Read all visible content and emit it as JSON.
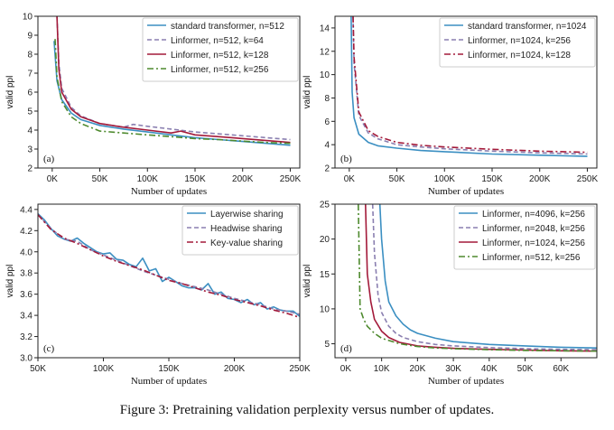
{
  "caption": "Figure 3: Pretraining validation perplexity versus number of updates.",
  "chart_data": [
    {
      "panel_label": "(a)",
      "type": "line",
      "xlabel": "Number of updates",
      "ylabel": "valid ppl",
      "xlim": [
        -15000,
        260000
      ],
      "ylim": [
        2,
        10
      ],
      "xticks": [
        0,
        50000,
        100000,
        150000,
        200000,
        250000
      ],
      "xticklabels": [
        "0K",
        "50K",
        "100K",
        "150K",
        "200K",
        "250K"
      ],
      "yticks": [
        2,
        3,
        4,
        5,
        6,
        7,
        8,
        9,
        10
      ],
      "yticklabels": [
        "2",
        "3",
        "4",
        "5",
        "6",
        "7",
        "8",
        "9",
        "10"
      ],
      "legend_position": "top-right",
      "series": [
        {
          "name": "standard transformer, n=512",
          "color": "#3b8fc2",
          "dash": "solid",
          "x": [
            2000,
            5000,
            10000,
            20000,
            30000,
            50000,
            75000,
            100000,
            125000,
            150000,
            175000,
            200000,
            225000,
            250000
          ],
          "y": [
            8.7,
            6.6,
            5.6,
            4.9,
            4.55,
            4.25,
            4.05,
            3.9,
            3.75,
            3.6,
            3.5,
            3.4,
            3.3,
            3.2
          ]
        },
        {
          "name": "Linformer, n=512, k=64",
          "color": "#8a7fb0",
          "dash": "5,3",
          "x": [
            5000,
            7000,
            10000,
            20000,
            30000,
            50000,
            75000,
            85000,
            100000,
            125000,
            150000,
            175000,
            200000,
            225000,
            250000
          ],
          "y": [
            10,
            7.5,
            6.2,
            5.2,
            4.75,
            4.35,
            4.15,
            4.3,
            4.2,
            4.05,
            3.9,
            3.8,
            3.7,
            3.6,
            3.5
          ]
        },
        {
          "name": "Linformer, n=512, k=128",
          "color": "#a31a3a",
          "dash": "solid",
          "x": [
            5000,
            7000,
            10000,
            20000,
            30000,
            50000,
            75000,
            100000,
            125000,
            135000,
            150000,
            175000,
            200000,
            225000,
            250000
          ],
          "y": [
            10,
            7.2,
            6.0,
            5.1,
            4.7,
            4.35,
            4.15,
            4.0,
            3.85,
            3.95,
            3.75,
            3.65,
            3.55,
            3.45,
            3.35
          ]
        },
        {
          "name": "Linformer, n=512, k=256",
          "color": "#4e8a2e",
          "dash": "7,3,2,3",
          "x": [
            3000,
            5000,
            10000,
            20000,
            30000,
            50000,
            75000,
            100000,
            125000,
            150000,
            175000,
            200000,
            225000,
            250000
          ],
          "y": [
            8.8,
            6.8,
            5.5,
            4.7,
            4.35,
            3.95,
            3.85,
            3.75,
            3.65,
            3.55,
            3.5,
            3.42,
            3.35,
            3.3
          ]
        }
      ]
    },
    {
      "panel_label": "(b)",
      "type": "line",
      "xlabel": "Number of updates",
      "ylabel": "valid ppl",
      "xlim": [
        -15000,
        260000
      ],
      "ylim": [
        2,
        15
      ],
      "xticks": [
        0,
        50000,
        100000,
        150000,
        200000,
        250000
      ],
      "xticklabels": [
        "0K",
        "50K",
        "100K",
        "150K",
        "200K",
        "250K"
      ],
      "yticks": [
        2,
        4,
        6,
        8,
        10,
        12,
        14
      ],
      "yticklabels": [
        "2",
        "4",
        "6",
        "8",
        "10",
        "12",
        "14"
      ],
      "legend_position": "top-right",
      "series": [
        {
          "name": "standard transformer, n=1024",
          "color": "#3b8fc2",
          "dash": "solid",
          "x": [
            2000,
            3000,
            5000,
            10000,
            20000,
            30000,
            50000,
            75000,
            100000,
            150000,
            200000,
            250000
          ],
          "y": [
            15,
            8.5,
            6.3,
            4.9,
            4.2,
            3.9,
            3.7,
            3.5,
            3.4,
            3.2,
            3.1,
            3.0
          ]
        },
        {
          "name": "Linformer, n=1024, k=256",
          "color": "#8a7fb0",
          "dash": "5,3",
          "x": [
            4000,
            5000,
            10000,
            20000,
            30000,
            50000,
            75000,
            100000,
            150000,
            200000,
            250000
          ],
          "y": [
            15,
            11,
            6.5,
            5.0,
            4.5,
            4.0,
            3.8,
            3.65,
            3.45,
            3.3,
            3.2
          ]
        },
        {
          "name": "Linformer, n=1024, k=128",
          "color": "#a31a3a",
          "dash": "7,3,2,3",
          "x": [
            4000,
            5000,
            10000,
            20000,
            30000,
            50000,
            75000,
            100000,
            150000,
            200000,
            250000
          ],
          "y": [
            15,
            11.5,
            6.8,
            5.2,
            4.7,
            4.2,
            3.95,
            3.8,
            3.6,
            3.45,
            3.35
          ]
        }
      ]
    },
    {
      "panel_label": "(c)",
      "type": "line",
      "xlabel": "Number of updates",
      "ylabel": "valid ppl",
      "xlim": [
        50000,
        250000
      ],
      "ylim": [
        3.0,
        4.45
      ],
      "xticks": [
        50000,
        100000,
        150000,
        200000,
        250000
      ],
      "xticklabels": [
        "50K",
        "100K",
        "150K",
        "200K",
        "250K"
      ],
      "yticks": [
        3.0,
        3.2,
        3.4,
        3.6,
        3.8,
        4.0,
        4.2,
        4.4
      ],
      "yticklabels": [
        "3.0",
        "3.2",
        "3.4",
        "3.6",
        "3.8",
        "4.0",
        "4.2",
        "4.4"
      ],
      "legend_position": "top-right",
      "series": [
        {
          "name": "Layerwise sharing",
          "color": "#3b8fc2",
          "dash": "solid",
          "x": [
            50000,
            55000,
            60000,
            65000,
            70000,
            75000,
            80000,
            85000,
            90000,
            95000,
            100000,
            105000,
            110000,
            115000,
            120000,
            125000,
            130000,
            135000,
            140000,
            145000,
            150000,
            155000,
            160000,
            165000,
            170000,
            175000,
            180000,
            185000,
            190000,
            195000,
            200000,
            205000,
            210000,
            215000,
            220000,
            225000,
            230000,
            235000,
            240000,
            245000,
            250000
          ],
          "y": [
            4.36,
            4.3,
            4.22,
            4.15,
            4.12,
            4.1,
            4.13,
            4.08,
            4.04,
            4.0,
            3.98,
            3.99,
            3.93,
            3.92,
            3.88,
            3.86,
            3.94,
            3.82,
            3.84,
            3.72,
            3.76,
            3.72,
            3.68,
            3.66,
            3.66,
            3.64,
            3.7,
            3.6,
            3.62,
            3.56,
            3.55,
            3.52,
            3.55,
            3.5,
            3.52,
            3.46,
            3.48,
            3.45,
            3.44,
            3.44,
            3.39
          ]
        },
        {
          "name": "Headwise sharing",
          "color": "#8a7fb0",
          "dash": "5,3",
          "x": [
            50000,
            60000,
            70000,
            80000,
            90000,
            100000,
            110000,
            120000,
            130000,
            140000,
            150000,
            160000,
            170000,
            180000,
            190000,
            200000,
            210000,
            220000,
            230000,
            240000,
            250000
          ],
          "y": [
            4.35,
            4.22,
            4.12,
            4.1,
            4.02,
            3.97,
            3.92,
            3.87,
            3.82,
            3.78,
            3.74,
            3.7,
            3.67,
            3.64,
            3.6,
            3.56,
            3.53,
            3.5,
            3.46,
            3.44,
            3.41
          ]
        },
        {
          "name": "Key-value sharing",
          "color": "#a31a3a",
          "dash": "7,3,2,3",
          "x": [
            50000,
            60000,
            70000,
            80000,
            90000,
            100000,
            110000,
            120000,
            130000,
            140000,
            150000,
            160000,
            170000,
            180000,
            190000,
            200000,
            210000,
            220000,
            230000,
            240000,
            250000
          ],
          "y": [
            4.35,
            4.21,
            4.13,
            4.08,
            4.02,
            3.96,
            3.91,
            3.87,
            3.83,
            3.78,
            3.73,
            3.7,
            3.66,
            3.62,
            3.59,
            3.55,
            3.52,
            3.49,
            3.45,
            3.42,
            3.38
          ]
        }
      ]
    },
    {
      "panel_label": "(d)",
      "type": "line",
      "xlabel": "Number of updates",
      "ylabel": "valid ppl",
      "xlim": [
        -3000,
        70000
      ],
      "ylim": [
        3,
        25
      ],
      "xticks": [
        0,
        10000,
        20000,
        30000,
        40000,
        50000,
        60000
      ],
      "xticklabels": [
        "0K",
        "10K",
        "20K",
        "30K",
        "40K",
        "50K",
        "60K"
      ],
      "yticks": [
        5,
        10,
        15,
        20,
        25
      ],
      "yticklabels": [
        "5",
        "10",
        "15",
        "20",
        "25"
      ],
      "legend_position": "top-right",
      "series": [
        {
          "name": "Linformer, n=4096, k=256",
          "color": "#3b8fc2",
          "dash": "solid",
          "x": [
            9500,
            10000,
            11000,
            12000,
            14000,
            16000,
            18000,
            20000,
            25000,
            30000,
            40000,
            50000,
            60000,
            70000
          ],
          "y": [
            25,
            20,
            14,
            11,
            9,
            7.8,
            7,
            6.5,
            5.8,
            5.3,
            4.9,
            4.7,
            4.5,
            4.4
          ]
        },
        {
          "name": "Linformer, n=2048, k=256",
          "color": "#8a7fb0",
          "dash": "5,3",
          "x": [
            7500,
            8000,
            9000,
            10000,
            12000,
            14000,
            16000,
            20000,
            25000,
            30000,
            40000,
            50000,
            60000,
            70000
          ],
          "y": [
            25,
            18,
            12,
            9.5,
            7.5,
            6.5,
            5.9,
            5.3,
            4.9,
            4.7,
            4.45,
            4.3,
            4.2,
            4.15
          ]
        },
        {
          "name": "Linformer, n=1024, k=256",
          "color": "#a31a3a",
          "dash": "solid",
          "x": [
            5500,
            6000,
            7000,
            8000,
            10000,
            12000,
            15000,
            20000,
            25000,
            30000,
            40000,
            50000,
            60000,
            70000
          ],
          "y": [
            25,
            15,
            11,
            8.5,
            6.8,
            5.9,
            5.2,
            4.7,
            4.5,
            4.35,
            4.2,
            4.1,
            4.0,
            3.95
          ]
        },
        {
          "name": "Linformer, n=512, k=256",
          "color": "#4e8a2e",
          "dash": "7,3,2,3",
          "x": [
            3500,
            4000,
            5000,
            6000,
            8000,
            10000,
            15000,
            20000,
            25000,
            30000,
            40000,
            50000,
            60000,
            70000
          ],
          "y": [
            25,
            10,
            8.5,
            7.5,
            6.5,
            5.8,
            5.0,
            4.6,
            4.4,
            4.3,
            4.15,
            4.05,
            4.0,
            3.95
          ]
        }
      ]
    }
  ]
}
